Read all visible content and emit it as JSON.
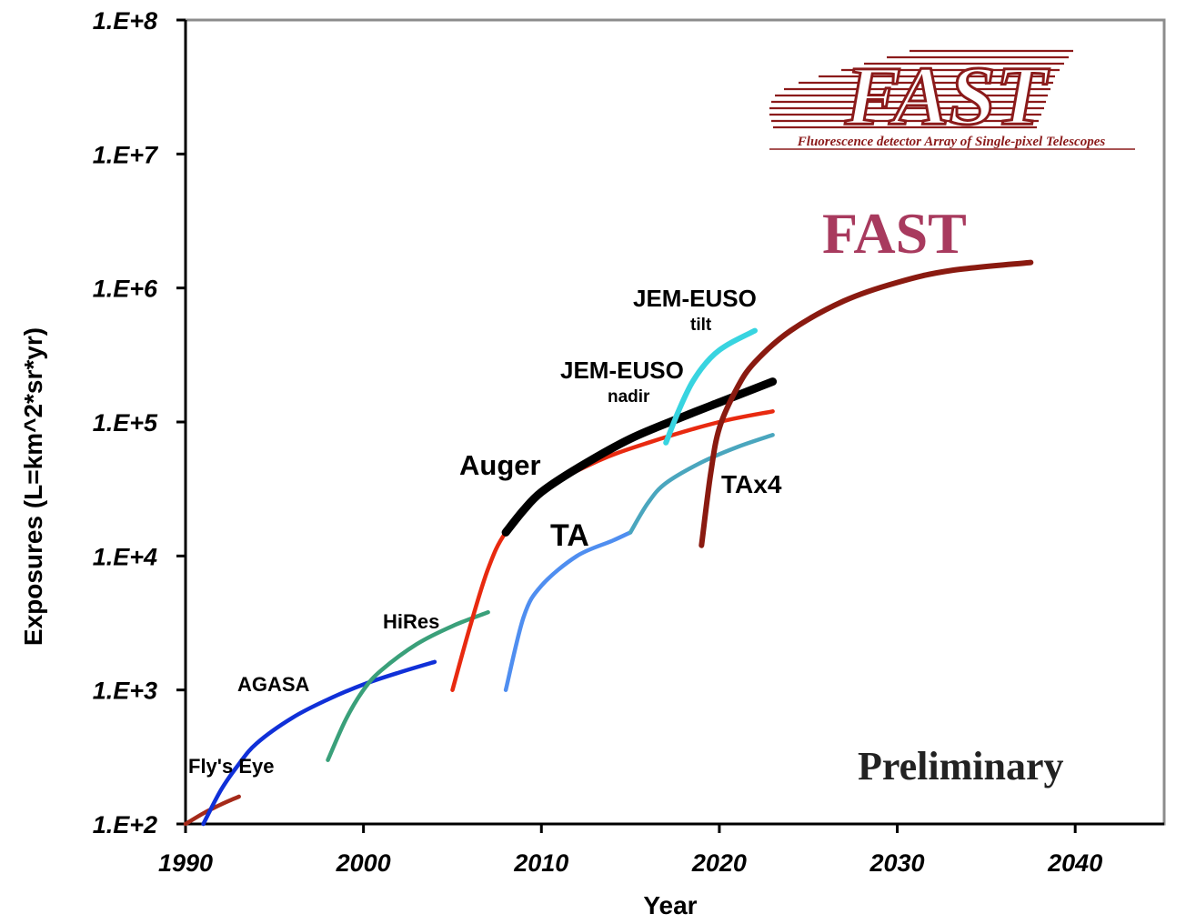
{
  "chart_data": {
    "type": "line",
    "xlabel": "Year",
    "ylabel": "Exposures (L=km^2*sr*yr)",
    "xlim": [
      1990,
      2045
    ],
    "ylim": [
      100,
      100000000
    ],
    "yscale": "log",
    "xticks": [
      "1990",
      "2000",
      "2010",
      "2020",
      "2030",
      "2040"
    ],
    "yticks": [
      "1.E+2",
      "1.E+3",
      "1.E+4",
      "1.E+5",
      "1.E+6",
      "1.E+7",
      "1.E+8"
    ],
    "grid": false,
    "series": [
      {
        "name": "Fly's Eye",
        "color": "#a52a1a",
        "x": [
          1990,
          1991,
          1992,
          1993
        ],
        "y": [
          100,
          120,
          140,
          160
        ]
      },
      {
        "name": "AGASA",
        "color": "#1030d8",
        "x": [
          1991,
          1992,
          1993,
          1994,
          1996,
          1998,
          2000,
          2002,
          2004
        ],
        "y": [
          100,
          180,
          280,
          400,
          620,
          850,
          1100,
          1350,
          1620
        ]
      },
      {
        "name": "HiRes",
        "color": "#3aa07a",
        "x": [
          1998,
          1999,
          2000,
          2001,
          2003,
          2005,
          2007
        ],
        "y": [
          300,
          600,
          1000,
          1400,
          2200,
          3000,
          3800
        ]
      },
      {
        "name": "Auger",
        "color": "#e82a10",
        "x": [
          2005,
          2006,
          2007,
          2008,
          2010,
          2013,
          2016,
          2020,
          2023
        ],
        "y": [
          1000,
          3000,
          8000,
          15000,
          30000,
          50000,
          70000,
          100000,
          120000
        ]
      },
      {
        "name": "JEM-EUSO nadir",
        "color": "#000000",
        "x": [
          2008,
          2009,
          2010,
          2012,
          2015,
          2018,
          2020,
          2023
        ],
        "y": [
          15000,
          22000,
          30000,
          45000,
          75000,
          110000,
          140000,
          200000
        ]
      },
      {
        "name": "TA",
        "color": "#4f8ef0",
        "x": [
          2008,
          2009,
          2010,
          2012,
          2014,
          2015
        ],
        "y": [
          1000,
          3500,
          6000,
          10000,
          13000,
          15000
        ]
      },
      {
        "name": "TAx4",
        "color": "#4aa6be",
        "x": [
          2015,
          2016,
          2017,
          2019,
          2021,
          2023
        ],
        "y": [
          15000,
          25000,
          35000,
          50000,
          65000,
          80000
        ]
      },
      {
        "name": "JEM-EUSO tilt",
        "color": "#38d4e0",
        "x": [
          2017,
          2017.7,
          2018.5,
          2019.5,
          2020.5,
          2022
        ],
        "y": [
          70000,
          120000,
          200000,
          300000,
          380000,
          480000
        ]
      },
      {
        "name": "FAST",
        "color": "#8a1a10",
        "x": [
          2019,
          2019.5,
          2020,
          2021,
          2022,
          2024,
          2027,
          2030,
          2033,
          2037.5
        ],
        "y": [
          12000,
          40000,
          90000,
          180000,
          280000,
          480000,
          800000,
          1100000,
          1350000,
          1550000
        ]
      }
    ],
    "annotations": [
      "Fly's Eye",
      "AGASA",
      "HiRes",
      "Auger",
      "TA",
      "TAx4",
      "JEM-EUSO",
      "nadir",
      "JEM-EUSO",
      "tilt",
      "FAST",
      "Preliminary"
    ]
  },
  "logo": {
    "text": "FAST",
    "subtitle": "Fluorescence detector Array of Single-pixel Telescopes"
  },
  "labels": {
    "flys_eye": "Fly's Eye",
    "agasa": "AGASA",
    "hires": "HiRes",
    "auger": "Auger",
    "ta": "TA",
    "tax4": "TAx4",
    "jem_nadir_1": "JEM-EUSO",
    "jem_nadir_2": "nadir",
    "jem_tilt_1": "JEM-EUSO",
    "jem_tilt_2": "tilt",
    "fast": "FAST",
    "preliminary": "Preliminary"
  },
  "colors": {
    "fast_label": "#a83a5e",
    "logo": "#8b1a1a"
  }
}
